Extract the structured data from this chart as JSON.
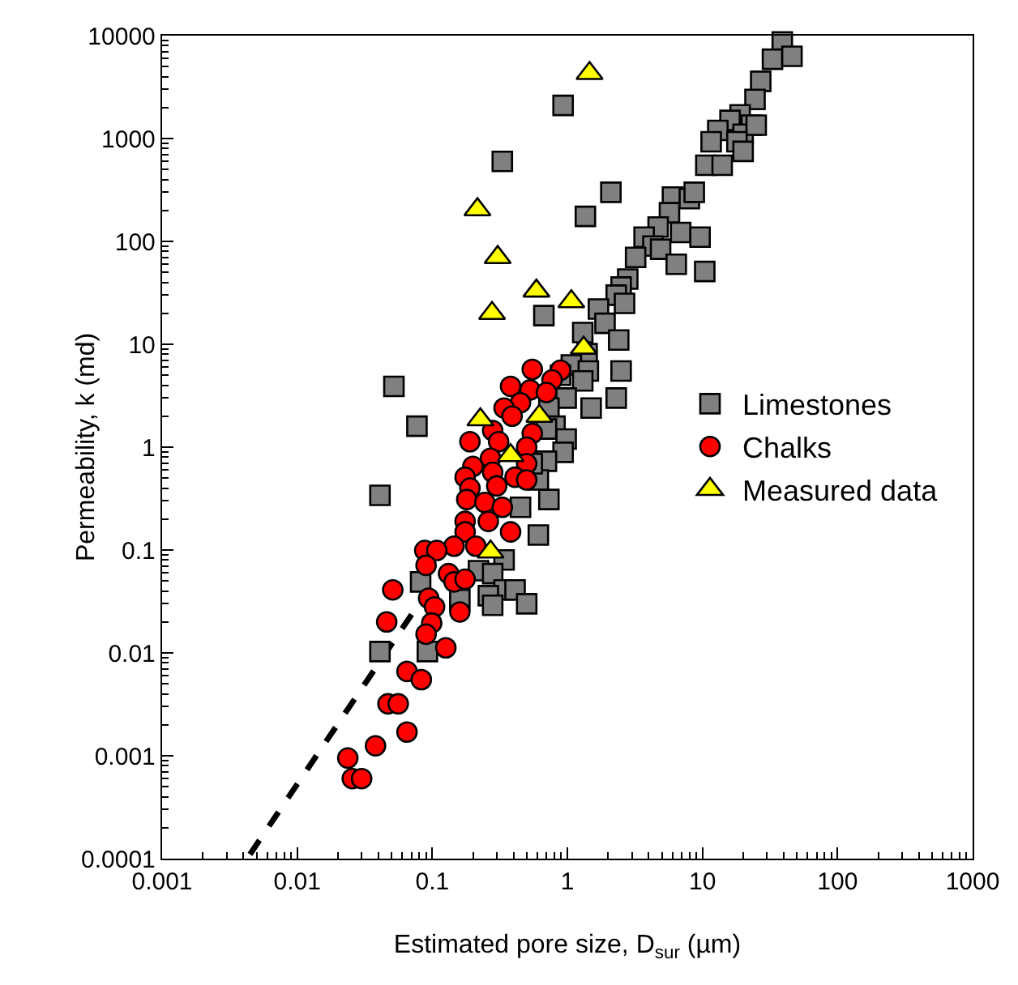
{
  "chart_data": {
    "type": "scatter",
    "xlabel": "Estimated pore size, D$_{sur}$ (µm)",
    "ylabel": "Permeability, k (md)",
    "log": "xy",
    "grid": false,
    "legend": "right",
    "xlim": [
      0.001,
      1000
    ],
    "xticks": [
      0.001,
      0.01,
      0.1,
      1,
      10,
      100,
      1000
    ],
    "ylim": [
      0.0001,
      10000
    ],
    "yticks": [
      0.0001,
      0.001,
      0.01,
      0.1,
      1,
      10,
      100,
      1000,
      10000
    ],
    "series": [
      {
        "name": "Limestones",
        "color": "#808080",
        "marker": "square",
        "x": [
          39,
          33,
          46,
          27,
          24.5,
          19,
          16,
          23,
          13,
          20,
          25,
          11.6,
          18,
          20,
          10.6,
          14,
          0.93,
          0.33,
          2.1,
          1.36,
          6.0,
          8.0,
          8.7,
          5.7,
          6.9,
          9.6,
          4.7,
          3.7,
          4.3,
          3.2,
          4.9,
          6.4,
          10.4,
          2.8,
          2.5,
          2.3,
          2.65,
          1.7,
          1.9,
          1.3,
          2.4,
          0.67,
          1.4,
          1.07,
          1.43,
          2.5,
          1.3,
          2.3,
          1.5,
          0.98,
          0.73,
          0.81,
          0.98,
          0.93,
          0.7,
          0.61,
          0.73,
          0.45,
          0.61,
          0.34,
          0.22,
          0.28,
          0.34,
          0.26,
          0.41,
          0.5,
          0.16,
          0.28,
          0.082,
          0.041,
          0.092,
          0.052,
          0.077,
          0.041,
          0.89,
          0.7,
          0.55
        ],
        "values": [
          8700,
          5900,
          6300,
          3600,
          2400,
          1700,
          1500,
          1350,
          1200,
          1100,
          1350,
          930,
          930,
          750,
          550,
          550,
          2100,
          600,
          300,
          175,
          270,
          260,
          300,
          190,
          122,
          110,
          138,
          110,
          90,
          70,
          84,
          60,
          51,
          43,
          36,
          30,
          25,
          22,
          16,
          13,
          11,
          19,
          8.1,
          6.3,
          5.5,
          5.5,
          4.4,
          3.0,
          2.4,
          3.0,
          2.4,
          1.6,
          1.2,
          0.89,
          0.73,
          0.48,
          0.31,
          0.26,
          0.14,
          0.08,
          0.063,
          0.059,
          0.041,
          0.036,
          0.041,
          0.03,
          0.033,
          0.029,
          0.049,
          0.0103,
          0.0103,
          3.9,
          1.6,
          0.34,
          5.0,
          1.5,
          0.69
        ]
      },
      {
        "name": "Chalks",
        "color": "#ff0000",
        "marker": "circle",
        "x": [
          0.55,
          0.89,
          0.77,
          0.38,
          0.53,
          0.45,
          0.7,
          0.34,
          0.39,
          0.55,
          0.28,
          0.19,
          0.31,
          0.5,
          0.27,
          0.2,
          0.5,
          0.175,
          0.28,
          0.41,
          0.19,
          0.3,
          0.5,
          0.18,
          0.245,
          0.33,
          0.175,
          0.26,
          0.38,
          0.175,
          0.21,
          0.145,
          0.088,
          0.108,
          0.09,
          0.132,
          0.145,
          0.175,
          0.051,
          0.094,
          0.104,
          0.16,
          0.046,
          0.099,
          0.09,
          0.126,
          0.065,
          0.083,
          0.047,
          0.056,
          0.065,
          0.038,
          0.0237,
          0.0256,
          0.03
        ],
        "values": [
          5.7,
          5.6,
          4.5,
          3.9,
          3.6,
          2.7,
          3.4,
          2.4,
          2.0,
          1.36,
          1.45,
          1.13,
          1.13,
          1.0,
          0.78,
          0.65,
          0.69,
          0.51,
          0.57,
          0.51,
          0.4,
          0.42,
          0.48,
          0.31,
          0.29,
          0.26,
          0.19,
          0.19,
          0.15,
          0.15,
          0.109,
          0.109,
          0.099,
          0.099,
          0.071,
          0.059,
          0.049,
          0.052,
          0.041,
          0.034,
          0.028,
          0.025,
          0.02,
          0.0195,
          0.0152,
          0.0112,
          0.0066,
          0.0055,
          0.0032,
          0.0032,
          0.0017,
          0.00125,
          0.00095,
          0.0006,
          0.0006
        ]
      },
      {
        "name": "Measured data",
        "color": "#ffff00",
        "marker": "triangle",
        "x": [
          1.46,
          0.216,
          0.305,
          0.277,
          0.59,
          1.07,
          1.32,
          0.227,
          0.62,
          0.38,
          0.27
        ],
        "values": [
          4300,
          204,
          70,
          20,
          33,
          26,
          9.2,
          1.85,
          2.0,
          0.83,
          0.096
        ]
      },
      {
        "type": "line",
        "color": "#000000",
        "marker": "none",
        "line_style": "dashed",
        "x": [
          0.00447,
          0.0745
        ],
        "values": [
          0.00011,
          0.0264
        ]
      }
    ]
  }
}
